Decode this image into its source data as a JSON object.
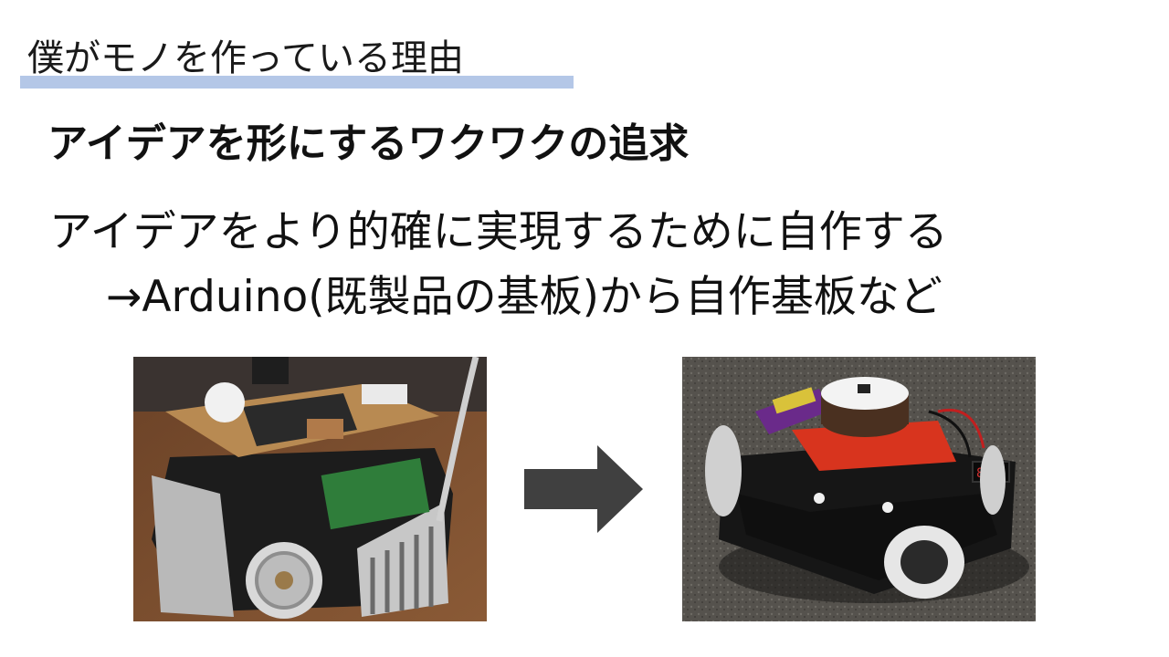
{
  "slide": {
    "title": "僕がモノを作っている理由",
    "subtitle": "アイデアを形にするワクワクの追求",
    "body_line1": "アイデアをより的確に実現するために自作する",
    "body_line2": "→Arduino(既製品の基板)から自作基板など"
  },
  "images": {
    "left_alt": "robot-before",
    "right_alt": "robot-after"
  },
  "colors": {
    "title_underline": "#b4c7e7",
    "arrow": "#404040"
  }
}
